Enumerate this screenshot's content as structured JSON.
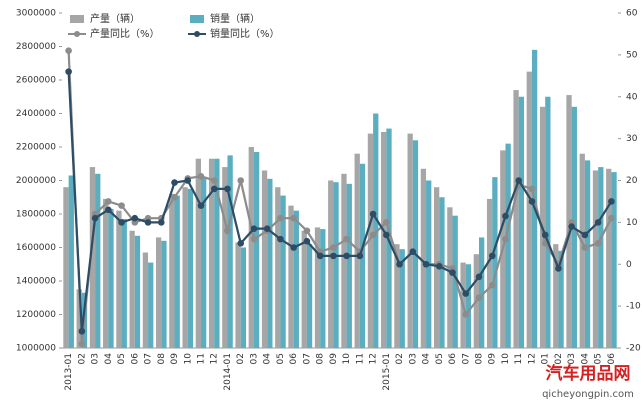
{
  "chart_data": {
    "type": "bar",
    "categories": [
      "2013-01",
      "02",
      "03",
      "04",
      "05",
      "06",
      "07",
      "08",
      "09",
      "10",
      "11",
      "12",
      "2014-01",
      "02",
      "03",
      "04",
      "05",
      "06",
      "07",
      "08",
      "09",
      "10",
      "11",
      "12",
      "2015-01",
      "02",
      "03",
      "04",
      "05",
      "06",
      "07",
      "08",
      "09",
      "10",
      "11",
      "12",
      "01",
      "02",
      "03",
      "04",
      "05",
      "06"
    ],
    "series": [
      {
        "name": "产量（辆）",
        "type": "bar",
        "color": "#a6a6a6",
        "values": [
          1960000,
          1350000,
          2080000,
          1890000,
          1820000,
          1700000,
          1570000,
          1660000,
          1920000,
          1960000,
          2130000,
          2130000,
          2080000,
          1630000,
          2200000,
          2060000,
          1960000,
          1850000,
          1700000,
          1720000,
          2000000,
          2040000,
          2160000,
          2280000,
          2290000,
          1620000,
          2280000,
          2070000,
          1960000,
          1840000,
          1510000,
          1560000,
          1890000,
          2180000,
          2540000,
          2650000,
          2440000,
          1620000,
          2510000,
          2160000,
          2060000,
          2070000
        ]
      },
      {
        "name": "销量（辆）",
        "type": "bar",
        "color": "#5aaebf",
        "values": [
          2030000,
          1330000,
          2040000,
          1830000,
          1770000,
          1670000,
          1510000,
          1640000,
          1910000,
          1950000,
          2020000,
          2130000,
          2150000,
          1600000,
          2170000,
          2010000,
          1910000,
          1820000,
          1620000,
          1710000,
          1990000,
          1980000,
          2100000,
          2400000,
          2310000,
          1590000,
          2240000,
          2000000,
          1900000,
          1790000,
          1500000,
          1660000,
          2020000,
          2220000,
          2500000,
          2780000,
          2500000,
          1580000,
          2440000,
          2120000,
          2080000,
          2050000
        ]
      },
      {
        "name": "产量同比（%）",
        "type": "line",
        "axis": "y2",
        "color": "#8c8c8c",
        "values": [
          51,
          -19,
          12,
          15,
          14,
          10,
          11,
          11,
          16,
          20.5,
          21,
          20,
          8,
          20,
          6,
          8,
          11,
          11,
          8,
          3,
          4,
          6,
          3,
          7,
          10,
          0,
          3,
          0,
          0,
          -1,
          -12,
          -8,
          -5,
          6,
          19,
          18,
          5,
          0,
          10,
          4,
          5,
          11
        ]
      },
      {
        "name": "销量同比（%）",
        "type": "line",
        "axis": "y2",
        "color": "#2d4d66",
        "values": [
          46,
          -16,
          11,
          13,
          10,
          11,
          10,
          10,
          19.5,
          20,
          14,
          18,
          18,
          5,
          8.5,
          8.5,
          6,
          4,
          5.5,
          2,
          2,
          2,
          2,
          12,
          7,
          0,
          3,
          0,
          -0.5,
          -2,
          -7,
          -3,
          2,
          11.5,
          20,
          15,
          7,
          -1,
          9,
          7,
          10,
          15
        ]
      }
    ],
    "ylim": [
      1000000,
      3000000
    ],
    "yticks": [
      1000000,
      1200000,
      1400000,
      1600000,
      1800000,
      2000000,
      2200000,
      2400000,
      2600000,
      2800000,
      3000000
    ],
    "y2lim": [
      -20,
      60
    ],
    "y2ticks": [
      -20,
      -10,
      0,
      10,
      20,
      30,
      40,
      50,
      60
    ],
    "legend": "top-left",
    "annotations": [
      "汽车用品网",
      "qicheyongpin.com"
    ]
  }
}
